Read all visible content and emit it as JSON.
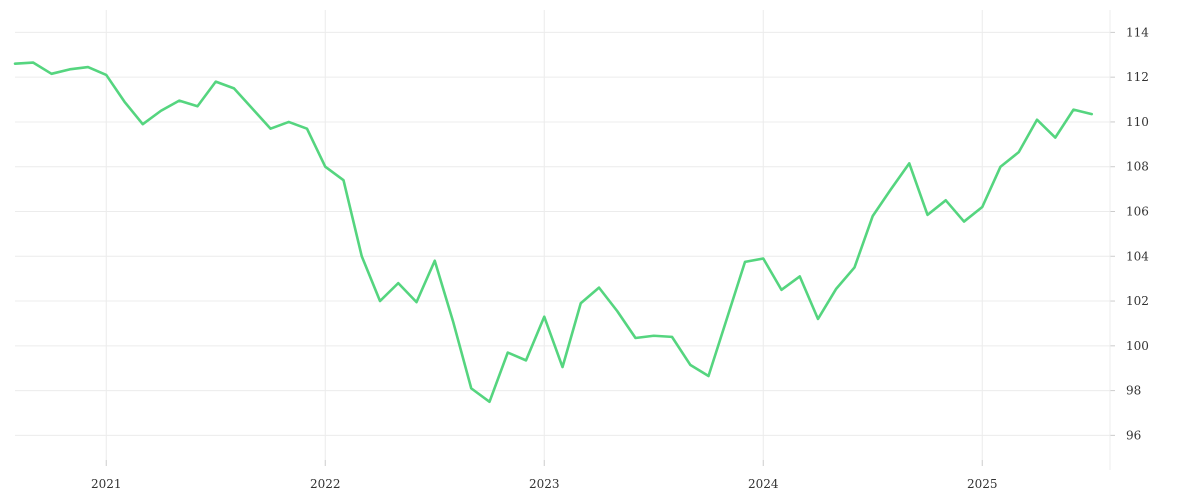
{
  "chart_data": {
    "type": "line",
    "title": "",
    "xlabel": "",
    "ylabel": "",
    "x_ticks": [
      "2021",
      "2022",
      "2023",
      "2024",
      "2025"
    ],
    "y_ticks": [
      96,
      98,
      100,
      102,
      104,
      106,
      108,
      110,
      112,
      114
    ],
    "ylim": [
      94.9,
      115
    ],
    "xlim": [
      "2020-08",
      "2025-08"
    ],
    "grid": true,
    "legend": "none",
    "colors": {
      "line": "#55d57f",
      "grid": "#ececec",
      "axis": "#cccccc",
      "text": "#333333"
    },
    "series": [
      {
        "x": [
          "2020-08",
          "2020-09",
          "2020-10",
          "2020-11",
          "2020-12",
          "2021-01",
          "2021-02",
          "2021-03",
          "2021-04",
          "2021-05",
          "2021-06",
          "2021-07",
          "2021-08",
          "2021-09",
          "2021-10",
          "2021-11",
          "2021-12",
          "2022-01",
          "2022-02",
          "2022-03",
          "2022-04",
          "2022-05",
          "2022-06",
          "2022-07",
          "2022-08",
          "2022-09",
          "2022-10",
          "2022-11",
          "2022-12",
          "2023-01",
          "2023-02",
          "2023-03",
          "2023-04",
          "2023-05",
          "2023-06",
          "2023-07",
          "2023-08",
          "2023-09",
          "2023-10",
          "2023-11",
          "2023-12",
          "2024-01",
          "2024-02",
          "2024-03",
          "2024-04",
          "2024-05",
          "2024-06",
          "2024-07",
          "2024-08",
          "2024-09",
          "2024-10",
          "2024-11",
          "2024-12",
          "2025-01",
          "2025-02",
          "2025-03",
          "2025-04",
          "2025-05",
          "2025-06",
          "2025-07"
        ],
        "values": [
          112.6,
          112.65,
          112.15,
          112.35,
          112.45,
          112.1,
          110.9,
          109.9,
          110.5,
          110.95,
          110.7,
          111.8,
          111.5,
          110.6,
          109.7,
          110.0,
          109.7,
          108.0,
          107.4,
          104.0,
          102.0,
          102.8,
          101.95,
          103.8,
          101.1,
          98.1,
          97.5,
          99.7,
          99.35,
          101.3,
          99.05,
          101.9,
          102.6,
          101.55,
          100.35,
          100.45,
          100.4,
          99.15,
          98.65,
          101.2,
          103.75,
          103.9,
          102.5,
          103.1,
          101.2,
          102.55,
          103.5,
          105.8,
          107.0,
          108.15,
          105.85,
          106.5,
          105.55,
          106.2,
          108.0,
          108.65,
          110.1,
          109.3,
          110.55,
          110.35
        ]
      }
    ]
  }
}
